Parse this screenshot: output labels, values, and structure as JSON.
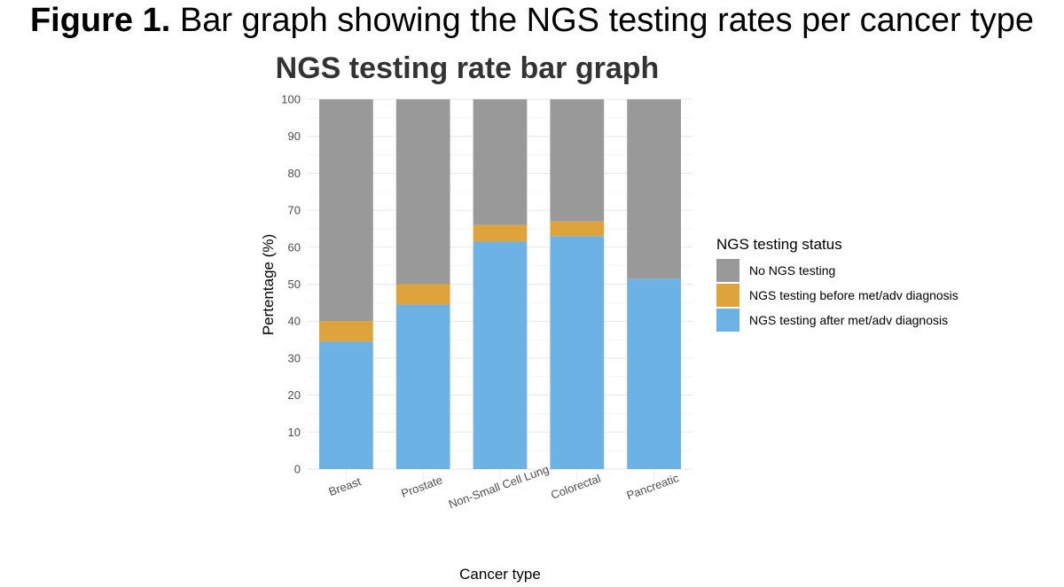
{
  "figure": {
    "label": "Figure 1.",
    "text": " Bar graph showing the NGS testing rates per cancer type"
  },
  "chart_data": {
    "type": "bar",
    "stacked": true,
    "title": "NGS testing rate bar graph",
    "xlabel": "Cancer type",
    "ylabel": "Pertentage (%)",
    "ylim": [
      0,
      100
    ],
    "yticks": [
      0,
      10,
      20,
      30,
      40,
      50,
      60,
      70,
      80,
      90,
      100
    ],
    "grid": true,
    "categories": [
      "Breast",
      "Prostate",
      "Non-Small Cell Lung",
      "Colorectal",
      "Pancreatic"
    ],
    "series": [
      {
        "name": "NGS testing after met/adv diagnosis",
        "color": "#6cb2e4",
        "values": [
          34.5,
          44.5,
          61.5,
          63,
          51.5
        ]
      },
      {
        "name": "NGS testing before met/adv diagnosis",
        "color": "#dea33b",
        "values": [
          5.5,
          5.5,
          4.5,
          4,
          0
        ]
      },
      {
        "name": "No NGS testing",
        "color": "#999999",
        "values": [
          60,
          50,
          34,
          33,
          48.5
        ]
      }
    ],
    "legend": {
      "title": "NGS testing status",
      "placement": "right",
      "order": [
        "No NGS testing",
        "NGS testing before met/adv diagnosis",
        "NGS testing after met/adv diagnosis"
      ]
    }
  }
}
